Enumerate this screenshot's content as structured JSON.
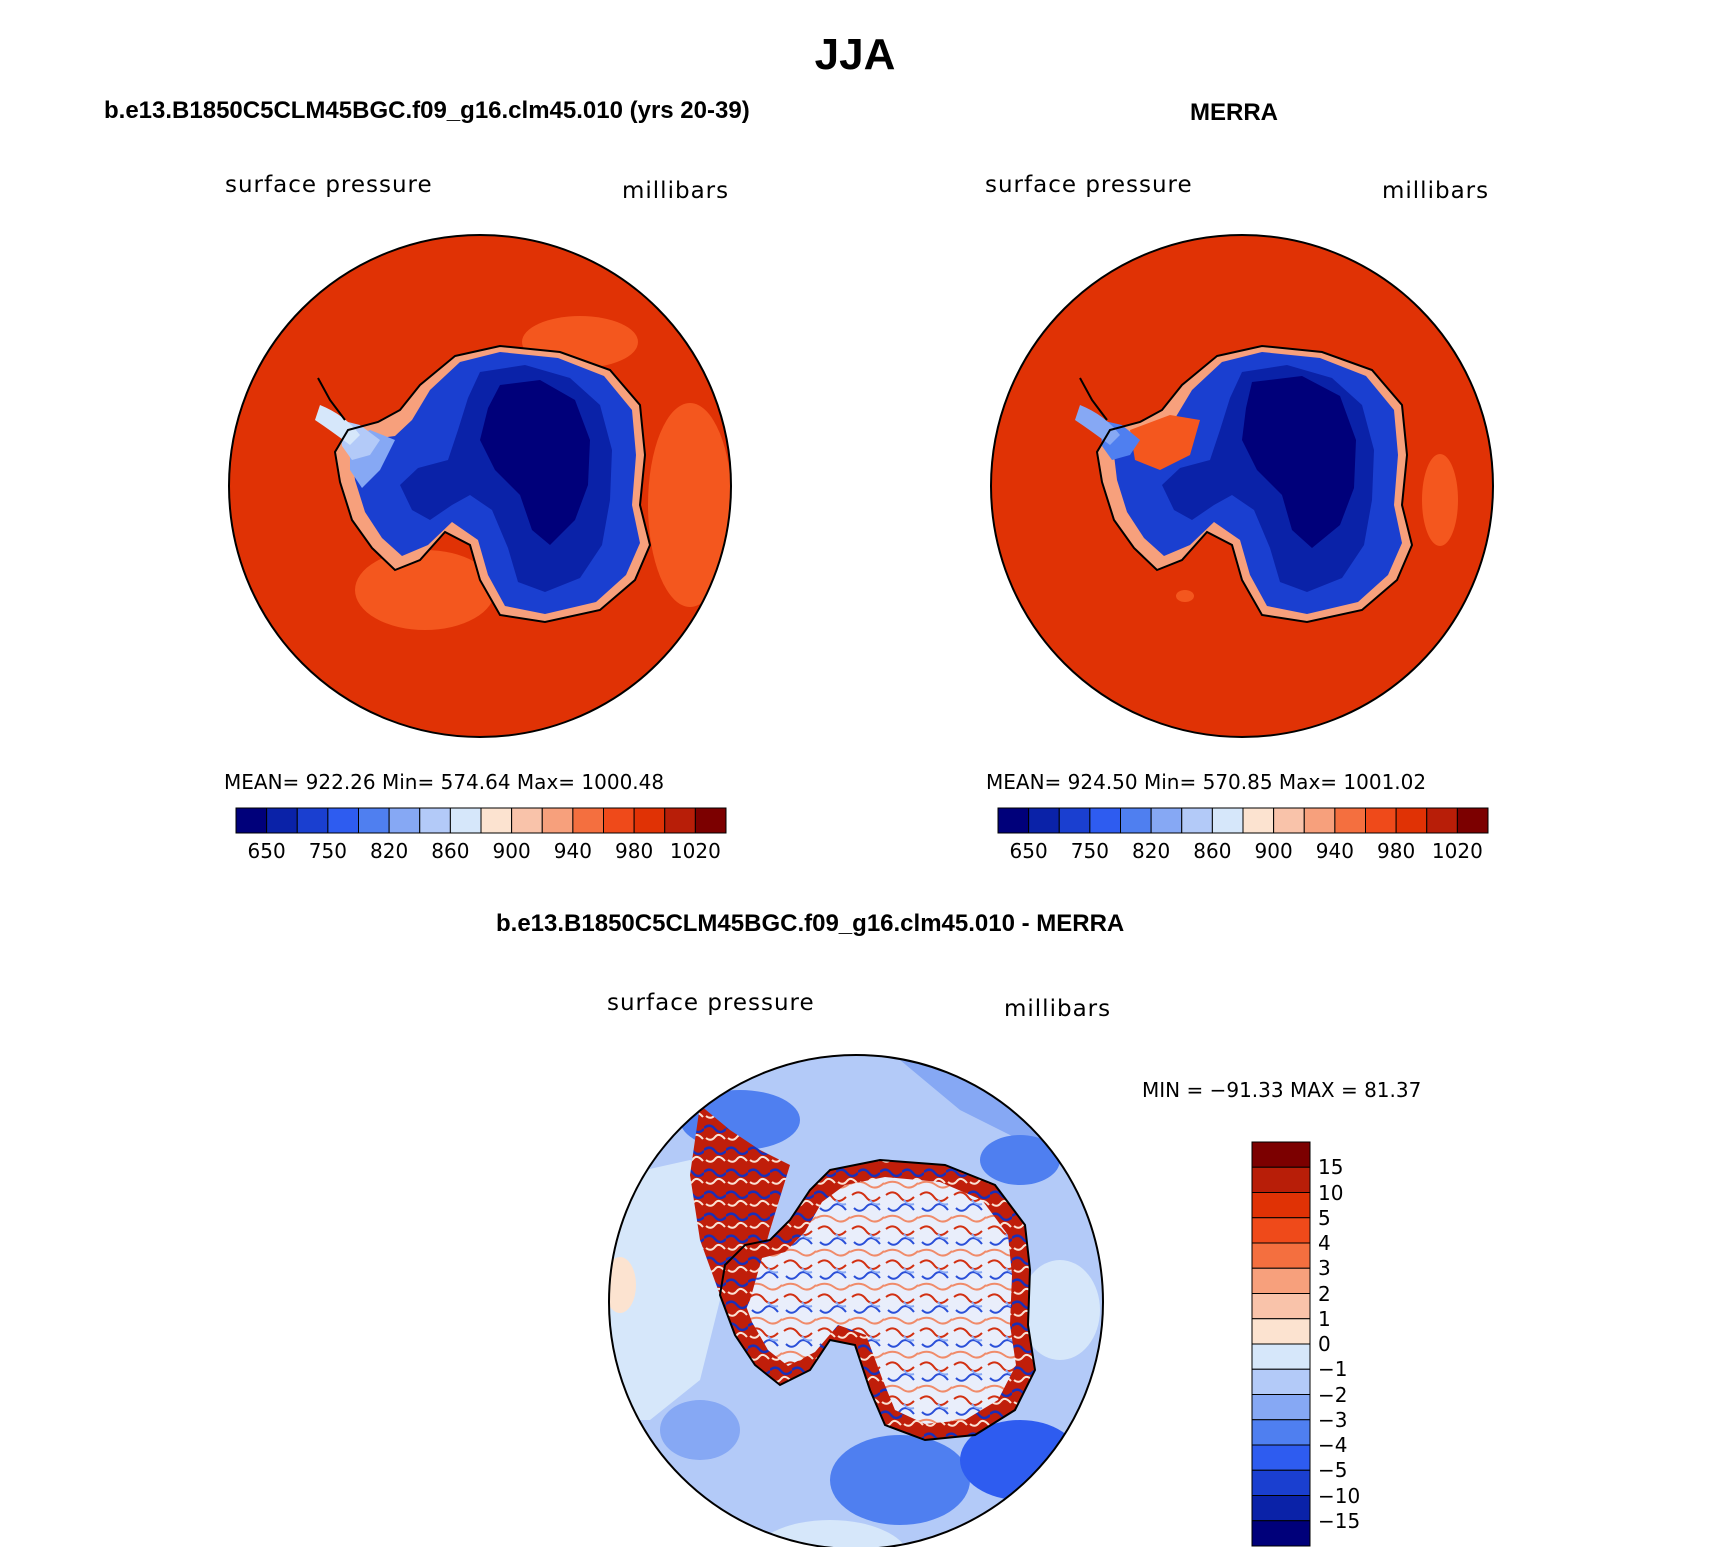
{
  "title": "JJA",
  "panels": [
    {
      "title": "b.e13.B1850C5CLM45BGC.f09_g16.clm45.010 (yrs 20-39)",
      "variable": "surface pressure",
      "units": "millibars",
      "stats": "MEAN= 922.26   Min= 574.64   Max= 1000.48",
      "mean": 922.26,
      "min": 574.64,
      "max": 1000.48
    },
    {
      "title": "MERRA",
      "variable": "surface pressure",
      "units": "millibars",
      "stats": "MEAN= 924.50   Min= 570.85   Max= 1001.02",
      "mean": 924.5,
      "min": 570.85,
      "max": 1001.02
    }
  ],
  "difference": {
    "title": "b.e13.B1850C5CLM45BGC.f09_g16.clm45.010 - MERRA",
    "variable": "surface pressure",
    "units": "millibars",
    "stats": "MIN = −91.33 MAX =  81.37",
    "min": -91.33,
    "max": 81.37
  },
  "colorbar_horizontal": {
    "labels": [
      "650",
      "750",
      "820",
      "860",
      "900",
      "940",
      "980",
      "1020"
    ],
    "colors": [
      "#00007a",
      "#0a22a8",
      "#1a3fd0",
      "#2e5cf0",
      "#4f7ff0",
      "#86a8f4",
      "#b3caf8",
      "#d6e7fa",
      "#fce3d0",
      "#f9c3aa",
      "#f7a07c",
      "#f46f3f",
      "#ef4a1a",
      "#e03205",
      "#b81e08",
      "#7c0000"
    ]
  },
  "colorbar_vertical": {
    "labels": [
      "15",
      "10",
      "5",
      "4",
      "3",
      "2",
      "1",
      "0",
      "−1",
      "−2",
      "−3",
      "−4",
      "−5",
      "−10",
      "−15"
    ],
    "colors": [
      "#7c0000",
      "#b81e08",
      "#e03205",
      "#ef4a1a",
      "#f46f3f",
      "#f7a07c",
      "#f9c3aa",
      "#fce3d0",
      "#d6e7fa",
      "#b3caf8",
      "#86a8f4",
      "#4f7ff0",
      "#2e5cf0",
      "#1a3fd0",
      "#0a22a8",
      "#00007a"
    ]
  },
  "chart_data": {
    "type": "map",
    "projection": "south polar stereographic",
    "region": "Antarctica",
    "color_scales": {
      "absolute": [
        "650",
        "750",
        "820",
        "860",
        "900",
        "940",
        "980",
        "1020"
      ],
      "difference": [
        "15",
        "10",
        "5",
        "4",
        "3",
        "2",
        "1",
        "0",
        "−1",
        "−2",
        "−3",
        "−4",
        "−5",
        "−10",
        "−15"
      ]
    }
  }
}
